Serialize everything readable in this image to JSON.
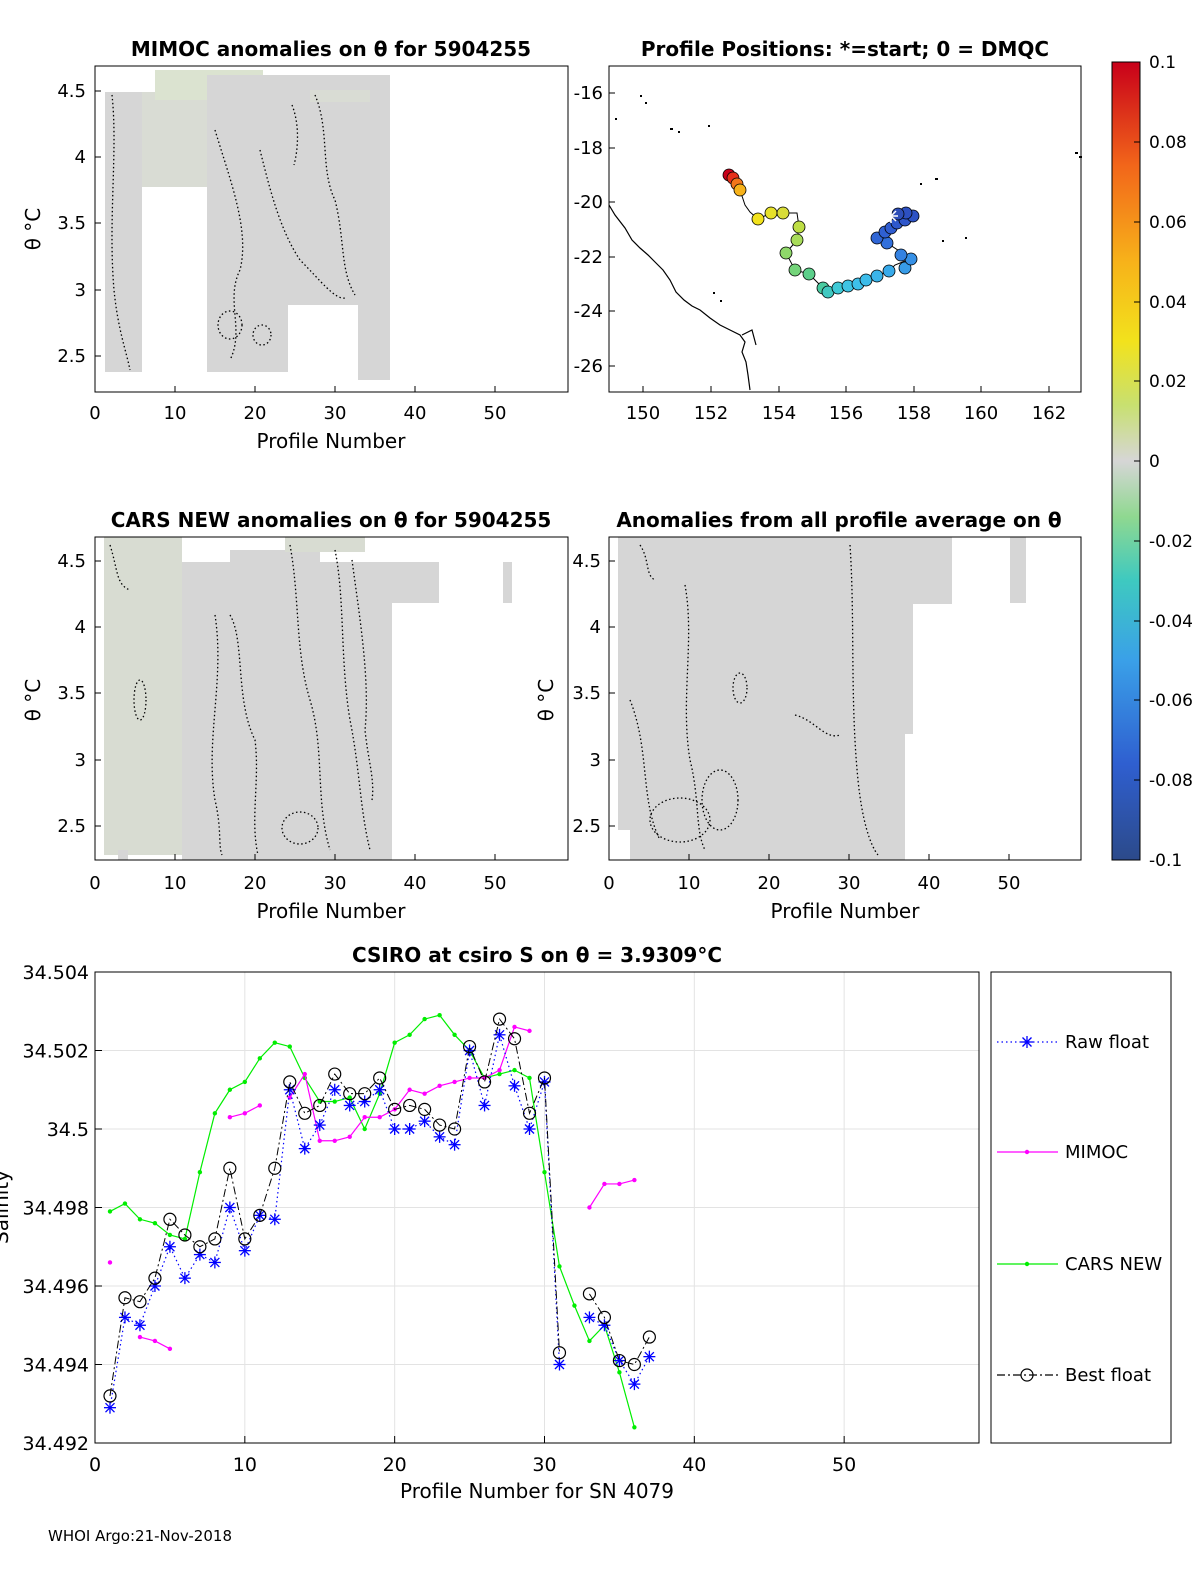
{
  "figure": {
    "footer": "WHOI Argo:21-Nov-2018"
  },
  "panels": {
    "mimoc": {
      "title": "MIMOC anomalies on θ  for 5904255",
      "xlabel": "Profile Number",
      "ylabel": "θ °C",
      "xticks": [
        "0",
        "10",
        "20",
        "30",
        "40",
        "50"
      ],
      "yticks": [
        "2.5",
        "3",
        "3.5",
        "4",
        "4.5"
      ]
    },
    "positions": {
      "title": "Profile Positions: *=start; 0 = DMQC",
      "xticks": [
        "150",
        "152",
        "154",
        "156",
        "158",
        "160",
        "162"
      ],
      "yticks": [
        "-16",
        "-18",
        "-20",
        "-22",
        "-24",
        "-26"
      ]
    },
    "cars": {
      "title": "CARS NEW anomalies on θ for 5904255",
      "xlabel": "Profile Number",
      "ylabel": "θ °C",
      "xticks": [
        "0",
        "10",
        "20",
        "30",
        "40",
        "50"
      ],
      "yticks": [
        "2.5",
        "3",
        "3.5",
        "4",
        "4.5"
      ]
    },
    "allprofile": {
      "title": "Anomalies from all profile average on θ",
      "xlabel": "Profile Number",
      "ylabel": "θ °C",
      "xticks": [
        "0",
        "10",
        "20",
        "30",
        "40",
        "50"
      ],
      "yticks": [
        "2.5",
        "3",
        "3.5",
        "4",
        "4.5"
      ]
    },
    "colorbar": {
      "ticks": [
        "0.1",
        "0.08",
        "0.06",
        "0.04",
        "0.02",
        "0",
        "-0.02",
        "-0.04",
        "-0.06",
        "-0.08",
        "-0.1"
      ]
    }
  },
  "chart_data": {
    "type": "line",
    "title": "CSIRO at csiro S on θ = 3.9309°C",
    "xlabel": "Profile Number for SN 4079",
    "ylabel": "Salinity",
    "xlim": [
      0,
      59
    ],
    "ylim": [
      34.492,
      34.504
    ],
    "xticks": [
      "0",
      "10",
      "20",
      "30",
      "40",
      "50"
    ],
    "yticks": [
      "34.492",
      "34.494",
      "34.496",
      "34.498",
      "34.5",
      "34.502",
      "34.504"
    ],
    "legend_position": "right",
    "series": [
      {
        "name": "Raw float",
        "color": "#0000ff",
        "marker": "asterisk",
        "line": "dotted",
        "x": [
          1,
          2,
          3,
          4,
          5,
          6,
          7,
          8,
          9,
          10,
          11,
          12,
          13,
          14,
          15,
          16,
          17,
          18,
          19,
          20,
          21,
          22,
          23,
          24,
          25,
          26,
          27,
          28,
          29,
          30,
          31,
          32,
          33,
          34,
          35,
          36,
          37
        ],
        "values": [
          34.4929,
          34.4952,
          34.495,
          34.496,
          34.497,
          34.4962,
          34.4968,
          34.4966,
          34.498,
          34.4969,
          34.4978,
          34.4977,
          34.501,
          34.4995,
          34.5001,
          34.501,
          34.5006,
          34.5007,
          34.501,
          34.5,
          34.5,
          34.5002,
          34.4998,
          34.4996,
          34.502,
          34.5006,
          34.5024,
          34.5011,
          34.5,
          34.5012,
          34.494,
          null,
          34.4952,
          34.495,
          34.4941,
          34.4935,
          34.4942
        ]
      },
      {
        "name": "MIMOC",
        "color": "#ff00ff",
        "marker": "dot",
        "line": "solid",
        "x": [
          1,
          2,
          3,
          4,
          5,
          6,
          7,
          8,
          9,
          10,
          11,
          12,
          13,
          14,
          15,
          16,
          17,
          18,
          19,
          20,
          21,
          22,
          23,
          24,
          25,
          26,
          27,
          28,
          29,
          30,
          31,
          32,
          33,
          34,
          35,
          36,
          37
        ],
        "values": [
          34.4966,
          null,
          34.4947,
          34.4946,
          34.4944,
          null,
          null,
          null,
          34.5003,
          34.5004,
          34.5006,
          null,
          34.5008,
          34.5014,
          34.4997,
          34.4997,
          34.4998,
          34.5003,
          34.5003,
          34.5005,
          34.501,
          34.5009,
          34.5011,
          34.5012,
          34.5013,
          34.5013,
          34.5015,
          34.5026,
          34.5025,
          null,
          null,
          null,
          34.498,
          34.4986,
          34.4986,
          34.4987,
          null
        ]
      },
      {
        "name": "CARS NEW",
        "color": "#00ee00",
        "marker": "dot",
        "line": "solid",
        "x": [
          1,
          2,
          3,
          4,
          5,
          6,
          7,
          8,
          9,
          10,
          11,
          12,
          13,
          14,
          15,
          16,
          17,
          18,
          19,
          20,
          21,
          22,
          23,
          24,
          25,
          26,
          27,
          28,
          29,
          30,
          31,
          32,
          33,
          34,
          35,
          36,
          37
        ],
        "values": [
          34.4979,
          34.4981,
          34.4977,
          34.4976,
          34.4973,
          34.4972,
          34.4989,
          34.5004,
          34.501,
          34.5012,
          34.5018,
          34.5022,
          34.5021,
          34.5013,
          34.5007,
          34.5007,
          34.5008,
          34.5,
          34.5009,
          34.5022,
          34.5024,
          34.5028,
          34.5029,
          34.5024,
          34.502,
          34.5013,
          34.5014,
          34.5015,
          34.5013,
          34.4989,
          34.4965,
          34.4955,
          34.4946,
          34.495,
          34.4938,
          34.4924,
          null
        ]
      },
      {
        "name": "Best float",
        "color": "#000000",
        "marker": "circle",
        "line": "dashdot",
        "x": [
          1,
          2,
          3,
          4,
          5,
          6,
          7,
          8,
          9,
          10,
          11,
          12,
          13,
          14,
          15,
          16,
          17,
          18,
          19,
          20,
          21,
          22,
          23,
          24,
          25,
          26,
          27,
          28,
          29,
          30,
          31,
          32,
          33,
          34,
          35,
          36,
          37
        ],
        "values": [
          34.4932,
          34.4957,
          34.4956,
          34.4962,
          34.4977,
          34.4973,
          34.497,
          34.4972,
          34.499,
          34.4972,
          34.4978,
          34.499,
          34.5012,
          34.5004,
          34.5006,
          34.5014,
          34.5009,
          34.5009,
          34.5013,
          34.5005,
          34.5006,
          34.5005,
          34.5001,
          34.5,
          34.5021,
          34.5012,
          34.5028,
          34.5023,
          34.5004,
          34.5013,
          34.4943,
          null,
          34.4958,
          34.4952,
          34.4941,
          34.494,
          34.4947
        ]
      }
    ]
  }
}
